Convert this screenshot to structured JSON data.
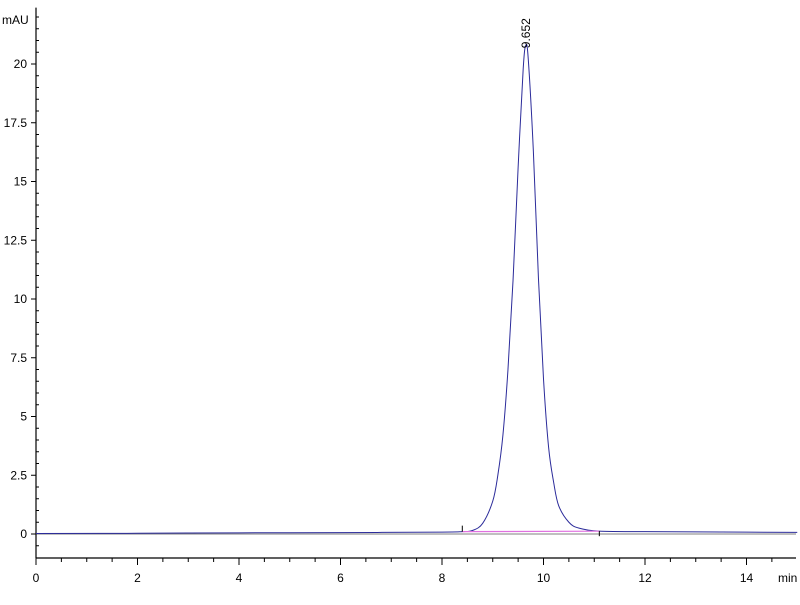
{
  "chart_data": {
    "type": "line",
    "title": "",
    "xlabel": "min",
    "ylabel": "mAU",
    "xlim": [
      0,
      15
    ],
    "ylim": [
      -1,
      22.4
    ],
    "grid": false,
    "x_ticks": [
      0,
      2,
      4,
      6,
      8,
      10,
      12,
      14
    ],
    "x_tick_labels": [
      "0",
      "2",
      "4",
      "6",
      "8",
      "10",
      "12",
      "14"
    ],
    "y_ticks": [
      0,
      2.5,
      5,
      7.5,
      10,
      12.5,
      15,
      17.5,
      20
    ],
    "y_tick_labels": [
      "0",
      "2.5",
      "5",
      "7.5",
      "10",
      "12.5",
      "15",
      "17.5",
      "20"
    ],
    "colors": {
      "signal": "#2b2b9a",
      "integration_baseline": "#e070e0",
      "axis": "#000000"
    },
    "series": [
      {
        "x": [
          0,
          2,
          4,
          6,
          8,
          8.4,
          8.6,
          8.8,
          9.0,
          9.1,
          9.2,
          9.3,
          9.4,
          9.5,
          9.6,
          9.652,
          9.7,
          9.8,
          9.9,
          10.0,
          10.1,
          10.2,
          10.3,
          10.5,
          10.7,
          11.1,
          12,
          14,
          15
        ],
        "y": [
          0.02,
          0.03,
          0.05,
          0.06,
          0.08,
          0.1,
          0.15,
          0.45,
          1.4,
          2.5,
          4.2,
          7.0,
          10.8,
          15.6,
          19.8,
          20.8,
          20.2,
          16.3,
          10.9,
          6.6,
          3.7,
          2.2,
          1.2,
          0.5,
          0.25,
          0.12,
          0.1,
          0.08,
          0.07
        ]
      }
    ],
    "peaks": [
      {
        "label": "9.652",
        "x": 9.652,
        "y": 20.8,
        "integration_start": 8.4,
        "integration_end": 11.1
      }
    ]
  }
}
